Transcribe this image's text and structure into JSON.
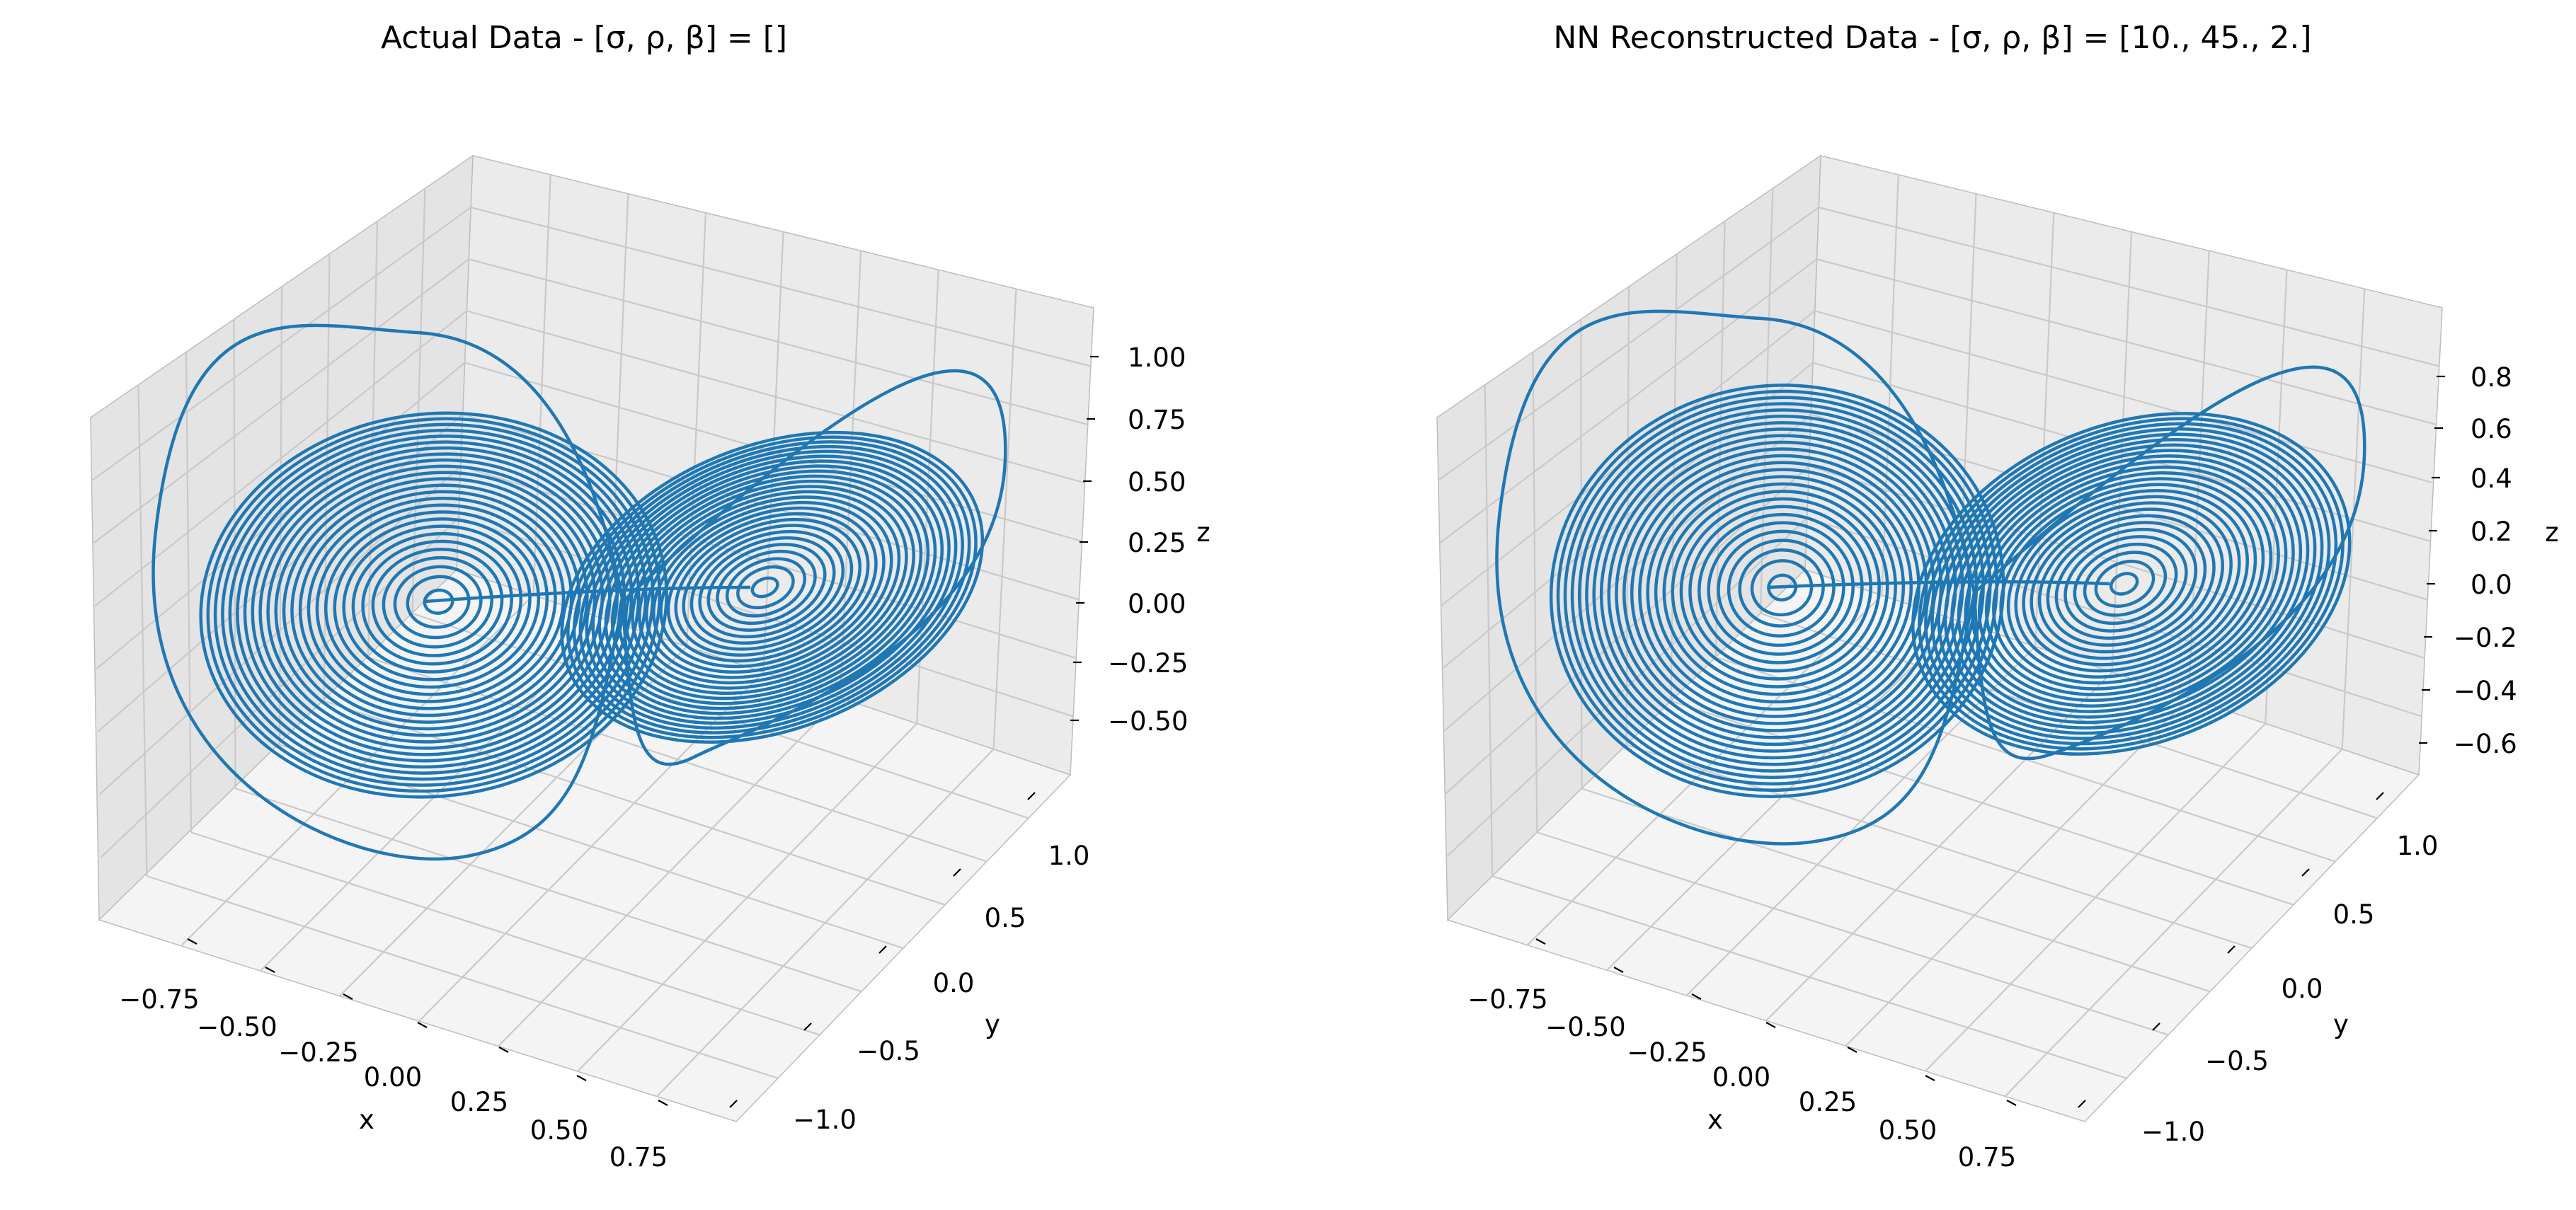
{
  "figure": {
    "panels": [
      {
        "title": "Actual Data - [σ, ρ, β] = []",
        "xlabel": "x",
        "ylabel": "y",
        "zlabel": "z"
      },
      {
        "title": "NN Reconstructed Data - [σ, ρ, β] = [10., 45.,  2.]",
        "xlabel": "x",
        "ylabel": "y",
        "zlabel": "z"
      }
    ]
  },
  "chart_data": [
    {
      "type": "line",
      "projection": "3d",
      "title": "Actual Data - [σ, ρ, β] = []",
      "xlabel": "x",
      "ylabel": "y",
      "zlabel": "z",
      "x_ticks": [
        "−0.75",
        "−0.50",
        "−0.25",
        "0.00",
        "0.25",
        "0.50",
        "0.75"
      ],
      "y_ticks": [
        "−1.0",
        "−0.5",
        "0.0",
        "0.5",
        "1.0"
      ],
      "z_ticks": [
        "−0.50",
        "−0.25",
        "0.00",
        "0.25",
        "0.50",
        "0.75",
        "1.00"
      ],
      "xlim": [
        -0.95,
        0.95
      ],
      "ylim": [
        -1.25,
        1.25
      ],
      "zlim": [
        -0.75,
        1.15
      ],
      "grid": true,
      "series": [
        {
          "description": "Lorenz attractor trajectory (two-lobed butterfly)",
          "color": "#1f77b4",
          "wings": [
            {
              "center": [
                -0.5,
                -0.45,
                0.0
              ],
              "max_radius": 0.62
            },
            {
              "center": [
                0.45,
                0.45,
                0.0
              ],
              "max_radius": 0.6
            }
          ]
        }
      ]
    },
    {
      "type": "line",
      "projection": "3d",
      "title": "NN Reconstructed Data - [σ, ρ, β] = [10., 45.,  2.]",
      "xlabel": "x",
      "ylabel": "y",
      "zlabel": "z",
      "x_ticks": [
        "−0.75",
        "−0.50",
        "−0.25",
        "0.00",
        "0.25",
        "0.50",
        "0.75"
      ],
      "y_ticks": [
        "−1.0",
        "−0.5",
        "0.0",
        "0.5",
        "1.0"
      ],
      "z_ticks": [
        "−0.6",
        "−0.4",
        "−0.2",
        "0.0",
        "0.2",
        "0.4",
        "0.6",
        "0.8"
      ],
      "xlim": [
        -0.95,
        0.95
      ],
      "ylim": [
        -1.25,
        1.25
      ],
      "zlim": [
        -0.7,
        1.0
      ],
      "grid": true,
      "series": [
        {
          "description": "Reconstructed Lorenz attractor trajectory",
          "color": "#1f77b4",
          "wings": [
            {
              "center": [
                -0.5,
                -0.45,
                0.0
              ],
              "max_radius": 0.6
            },
            {
              "center": [
                0.45,
                0.45,
                0.0
              ],
              "max_radius": 0.58
            }
          ]
        }
      ]
    }
  ]
}
